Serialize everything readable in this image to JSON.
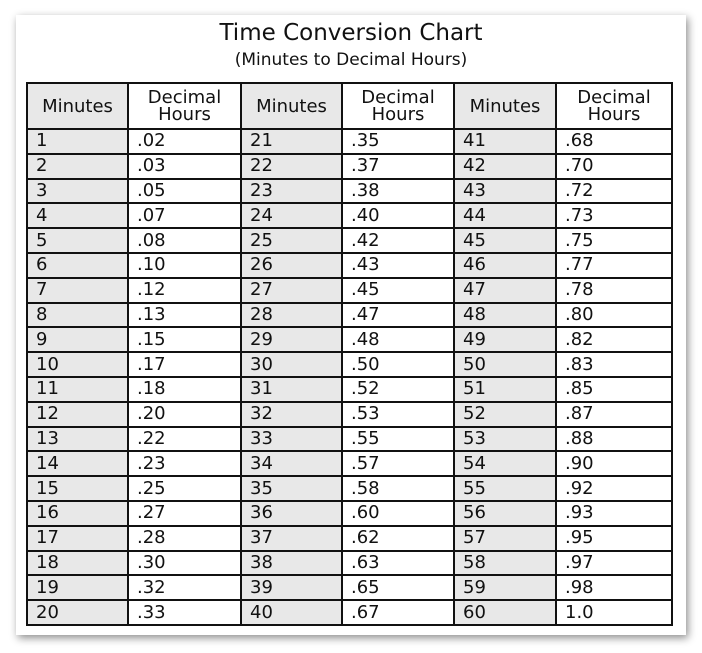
{
  "title": "Time Conversion Chart",
  "subtitle": "(Minutes to Decimal Hours)",
  "headers": {
    "minutes": "Minutes",
    "decimal_line1": "Decimal",
    "decimal_line2": "Hours"
  },
  "chart_data": {
    "type": "table",
    "columns": [
      "Minutes",
      "Decimal Hours",
      "Minutes",
      "Decimal Hours",
      "Minutes",
      "Decimal Hours"
    ],
    "rows": [
      [
        "1",
        ".02",
        "21",
        ".35",
        "41",
        ".68"
      ],
      [
        "2",
        ".03",
        "22",
        ".37",
        "42",
        ".70"
      ],
      [
        "3",
        ".05",
        "23",
        ".38",
        "43",
        ".72"
      ],
      [
        "4",
        ".07",
        "24",
        ".40",
        "44",
        ".73"
      ],
      [
        "5",
        ".08",
        "25",
        ".42",
        "45",
        ".75"
      ],
      [
        "6",
        ".10",
        "26",
        ".43",
        "46",
        ".77"
      ],
      [
        "7",
        ".12",
        "27",
        ".45",
        "47",
        ".78"
      ],
      [
        "8",
        ".13",
        "28",
        ".47",
        "48",
        ".80"
      ],
      [
        "9",
        ".15",
        "29",
        ".48",
        "49",
        ".82"
      ],
      [
        "10",
        ".17",
        "30",
        ".50",
        "50",
        ".83"
      ],
      [
        "11",
        ".18",
        "31",
        ".52",
        "51",
        ".85"
      ],
      [
        "12",
        ".20",
        "32",
        ".53",
        "52",
        ".87"
      ],
      [
        "13",
        ".22",
        "33",
        ".55",
        "53",
        ".88"
      ],
      [
        "14",
        ".23",
        "34",
        ".57",
        "54",
        ".90"
      ],
      [
        "15",
        ".25",
        "35",
        ".58",
        "55",
        ".92"
      ],
      [
        "16",
        ".27",
        "36",
        ".60",
        "56",
        ".93"
      ],
      [
        "17",
        ".28",
        "37",
        ".62",
        "57",
        ".95"
      ],
      [
        "18",
        ".30",
        "38",
        ".63",
        "58",
        ".97"
      ],
      [
        "19",
        ".32",
        "39",
        ".65",
        "59",
        ".98"
      ],
      [
        "20",
        ".33",
        "40",
        ".67",
        "60",
        "1.0"
      ]
    ]
  },
  "colors": {
    "minutes_bg": "#e8e8e8",
    "border": "#111111"
  }
}
